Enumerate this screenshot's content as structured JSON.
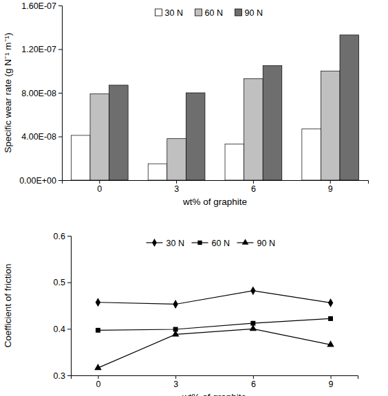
{
  "chart_data": [
    {
      "type": "bar",
      "x_label": "wt% of graphite",
      "y_label": "Specific wear rate (g N⁻¹ m⁻¹)",
      "categories": [
        "0",
        "3",
        "6",
        "9"
      ],
      "series": [
        {
          "name": "30 N",
          "color": "#ffffff",
          "values": [
            4.1e-08,
            1.5e-08,
            3.3e-08,
            4.7e-08
          ]
        },
        {
          "name": "60 N",
          "color": "#c0c0c0",
          "values": [
            7.9e-08,
            3.8e-08,
            9.3e-08,
            1e-07
          ]
        },
        {
          "name": "90 N",
          "color": "#6e6e6e",
          "values": [
            8.7e-08,
            8e-08,
            1.05e-07,
            1.33e-07
          ]
        }
      ],
      "ylim": [
        0,
        1.6e-07
      ],
      "yticks": [
        {
          "value": 0,
          "label": "0.00E+00"
        },
        {
          "value": 4e-08,
          "label": "4.00E-08"
        },
        {
          "value": 8e-08,
          "label": "8.00E-08"
        },
        {
          "value": 1.2e-07,
          "label": "1.20E-07"
        },
        {
          "value": 1.6e-07,
          "label": "1.60E-07"
        }
      ],
      "legend": "top",
      "grid": false
    },
    {
      "type": "line",
      "x_label": "wt% of graphite",
      "y_label": "Coefficient of friction",
      "categories": [
        "0",
        "3",
        "6",
        "9"
      ],
      "series": [
        {
          "name": "30 N",
          "color": "#000000",
          "marker": "diamond",
          "values": [
            0.457,
            0.453,
            0.482,
            0.456
          ]
        },
        {
          "name": "60 N",
          "color": "#000000",
          "marker": "square",
          "values": [
            0.397,
            0.399,
            0.412,
            0.422
          ]
        },
        {
          "name": "90 N",
          "color": "#000000",
          "marker": "triangle",
          "values": [
            0.316,
            0.388,
            0.4,
            0.366
          ]
        }
      ],
      "ylim": [
        0.3,
        0.6
      ],
      "yticks": [
        0.3,
        0.4,
        0.5,
        0.6
      ],
      "legend": "top",
      "grid": false
    }
  ]
}
